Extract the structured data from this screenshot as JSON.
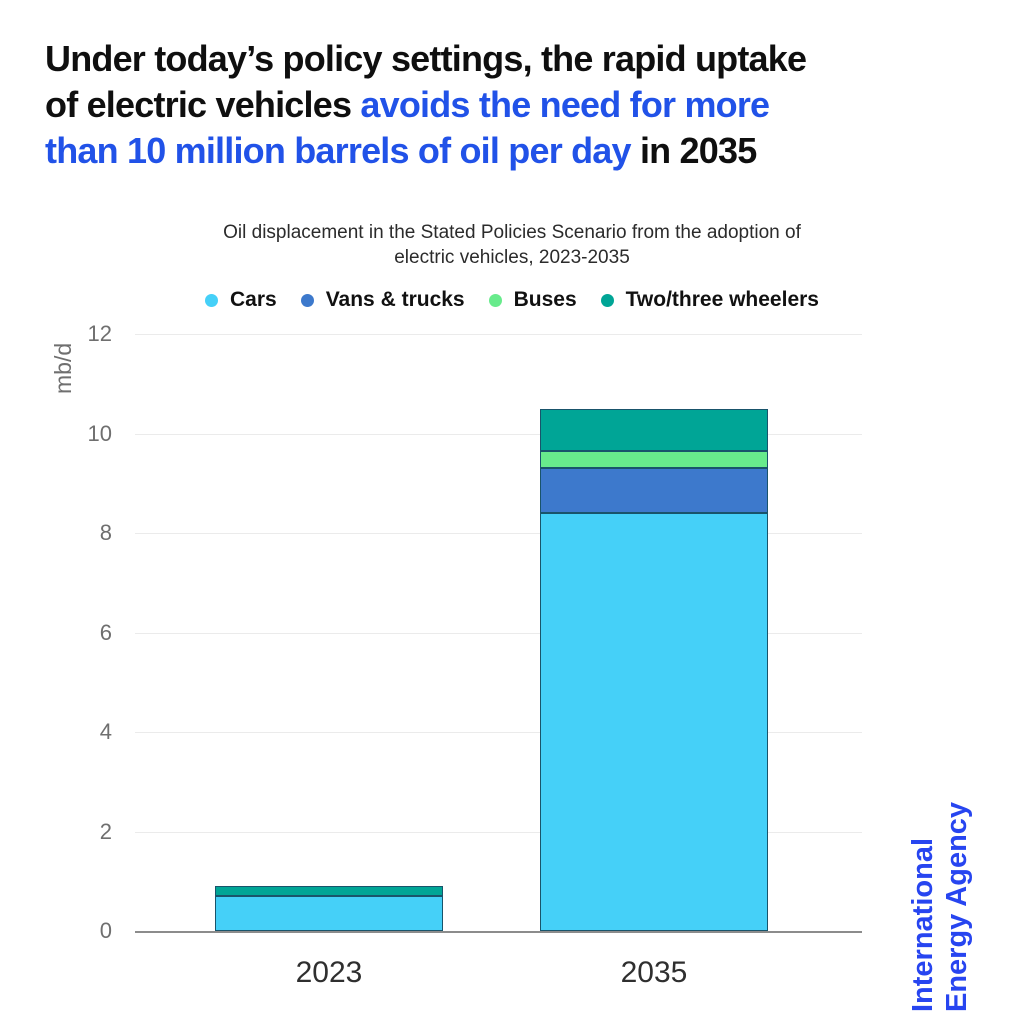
{
  "title": {
    "lines": [
      {
        "segments": [
          {
            "text": "Under today’s policy settings, the rapid uptake",
            "emphasis": false
          }
        ]
      },
      {
        "segments": [
          {
            "text": "of electric vehicles ",
            "emphasis": false
          },
          {
            "text": "avoids the need for more",
            "emphasis": true
          }
        ]
      },
      {
        "segments": [
          {
            "text": "than 10 million barrels of oil per day",
            "emphasis": true
          },
          {
            "text": " in 2035",
            "emphasis": false
          }
        ]
      }
    ]
  },
  "subtitle": {
    "lines": [
      "Oil displacement in the Stated Policies Scenario from the adoption of",
      "electric vehicles, 2023-2035"
    ]
  },
  "chart_data": {
    "type": "bar",
    "stacked": true,
    "categories": [
      "2023",
      "2035"
    ],
    "series": [
      {
        "name": "Cars",
        "color": "#45D0F8",
        "values": [
          0.7,
          8.4
        ]
      },
      {
        "name": "Vans & trucks",
        "color": "#3D79CC",
        "values": [
          0,
          0.9
        ]
      },
      {
        "name": "Buses",
        "color": "#68EB8C",
        "values": [
          0,
          0.35
        ]
      },
      {
        "name": "Two/three wheelers",
        "color": "#00A596",
        "values": [
          0.2,
          0.85
        ]
      }
    ],
    "ylabel": "mb/d",
    "xlabel": "",
    "ylim": [
      0,
      12
    ],
    "yticks": [
      0,
      2,
      4,
      6,
      8,
      10,
      12
    ],
    "grid": true,
    "legend_position": "top"
  },
  "wordmark": {
    "lines": [
      "International",
      "Energy Agency"
    ]
  },
  "colors": {
    "title_black": "#0F0F0F",
    "title_blue": "#2152E8",
    "subtitle_text": "#2B2B2B",
    "legend_text": "#111111",
    "axis_text": "#6F6F6F",
    "xlabel_text": "#2F2F2F",
    "gridline": "#EBEBEB",
    "axis_line": "#8C8C8C",
    "bar_stroke": "#19546B",
    "iea_blue": "#2745F0",
    "background": "#FFFFFF"
  }
}
